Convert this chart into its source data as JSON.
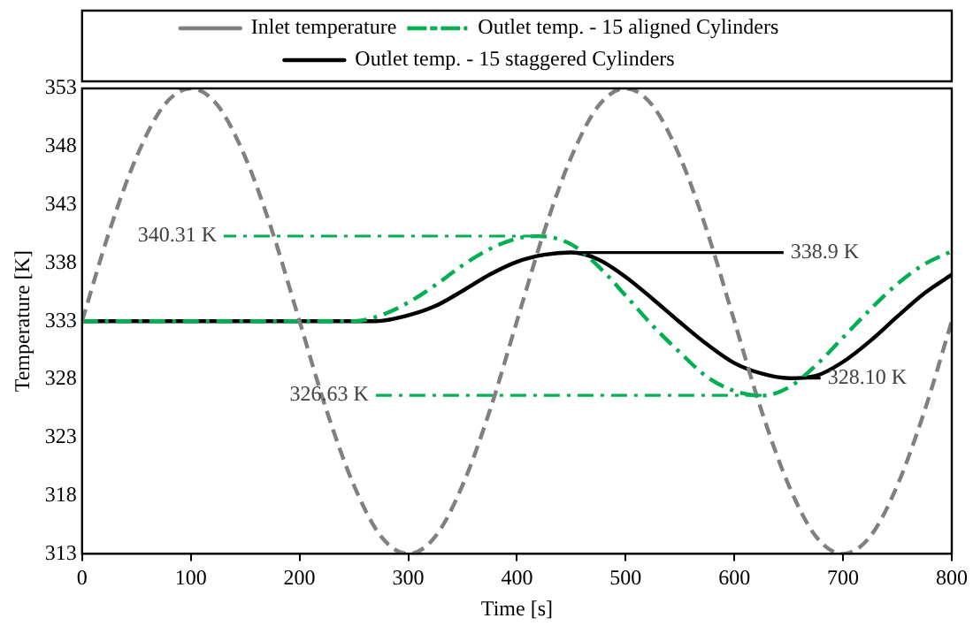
{
  "chart_data": {
    "type": "line",
    "xlabel": "Time [s]",
    "ylabel": "Temperature [K]",
    "xlim": [
      0,
      800
    ],
    "xticks": [
      0,
      100,
      200,
      300,
      400,
      500,
      600,
      700,
      800
    ],
    "ylim": [
      313,
      353
    ],
    "yticks": [
      313,
      318,
      323,
      328,
      333,
      338,
      343,
      348,
      353
    ],
    "grid": false,
    "legend": "top",
    "marker": "none",
    "series": [
      {
        "name": "Inlet temperature",
        "color": "#808080",
        "line_style": "dashed",
        "x": [
          0,
          25,
          50,
          75,
          100,
          125,
          150,
          175,
          200,
          225,
          250,
          275,
          300,
          325,
          350,
          375,
          400,
          425,
          450,
          475,
          500,
          525,
          550,
          575,
          600,
          625,
          650,
          675,
          700,
          725,
          750,
          775,
          800
        ],
        "values": [
          333,
          340.7,
          347.1,
          351.5,
          353,
          351.5,
          347.1,
          340.7,
          333,
          325.3,
          318.9,
          314.5,
          313,
          314.5,
          318.9,
          325.3,
          333,
          340.7,
          347.1,
          351.5,
          353,
          351.5,
          347.1,
          340.7,
          333,
          325.3,
          318.9,
          314.5,
          313,
          314.5,
          318.9,
          325.3,
          333
        ]
      },
      {
        "name": "Outlet temp. - 15 aligned Cylinders",
        "color": "#00b050",
        "line_style": "dashdot",
        "x": [
          0,
          100,
          200,
          250,
          275,
          300,
          325,
          350,
          375,
          400,
          420,
          450,
          475,
          500,
          525,
          550,
          575,
          600,
          625,
          650,
          675,
          700,
          725,
          750,
          775,
          800
        ],
        "values": [
          333,
          333,
          333,
          333,
          333.5,
          334.6,
          336.1,
          337.8,
          339.2,
          340.1,
          340.3,
          339.6,
          337.7,
          335.2,
          332.6,
          330.3,
          328.2,
          327,
          326.6,
          327.3,
          329.2,
          331.6,
          334,
          336.2,
          337.9,
          339
        ]
      },
      {
        "name": "Outlet temp. - 15 staggered Cylinders",
        "color": "#000000",
        "line_style": "solid",
        "x": [
          0,
          100,
          200,
          270,
          300,
          325,
          350,
          375,
          400,
          425,
          450,
          475,
          500,
          525,
          550,
          575,
          600,
          625,
          650,
          675,
          700,
          725,
          750,
          775,
          800
        ],
        "values": [
          333,
          333,
          333,
          333,
          333.5,
          334.3,
          335.6,
          337,
          338.1,
          338.7,
          338.9,
          338.3,
          336.8,
          334.9,
          332.9,
          331,
          329.4,
          328.5,
          328.1,
          328.3,
          329.5,
          331.3,
          333.4,
          335.4,
          337
        ]
      }
    ],
    "annotations": [
      {
        "text": "340.31 K",
        "x": 420,
        "y": 340.31
      },
      {
        "text": "338.9 K",
        "x": 450,
        "y": 338.9
      },
      {
        "text": "326.63 K",
        "x": 625,
        "y": 326.63
      },
      {
        "text": "328.10 K",
        "x": 650,
        "y": 328.1
      }
    ]
  }
}
